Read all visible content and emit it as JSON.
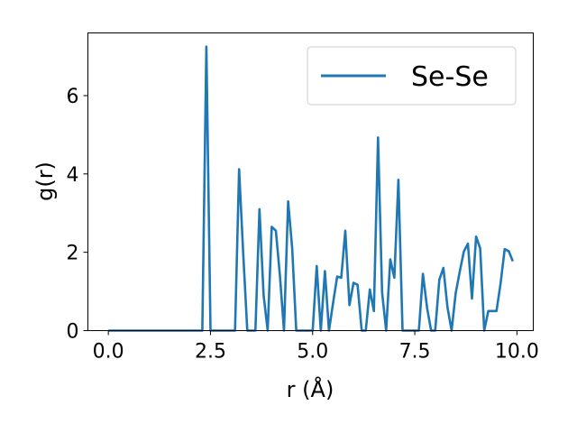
{
  "chart_data": {
    "type": "line",
    "title": "",
    "xlabel": "r (Å)",
    "ylabel": "g(r)",
    "xlim": [
      -0.5,
      10.4
    ],
    "ylim": [
      0,
      7.6
    ],
    "xticks": [
      0.0,
      2.5,
      5.0,
      7.5,
      10.0
    ],
    "xtick_labels": [
      "0.0",
      "2.5",
      "5.0",
      "7.5",
      "10.0"
    ],
    "yticks": [
      0,
      2,
      4,
      6
    ],
    "ytick_labels": [
      "0",
      "2",
      "4",
      "6"
    ],
    "grid": false,
    "legend_position": "top-right",
    "series": [
      {
        "name": "Se-Se",
        "color": "#1f77b4",
        "x": [
          0.0,
          0.1,
          0.2,
          0.3,
          0.4,
          0.5,
          0.6,
          0.7,
          0.8,
          0.9,
          1.0,
          1.1,
          1.2,
          1.3,
          1.4,
          1.5,
          1.6,
          1.7,
          1.8,
          1.9,
          2.0,
          2.1,
          2.2,
          2.3,
          2.4,
          2.5,
          2.6,
          2.7,
          2.8,
          2.9,
          3.0,
          3.1,
          3.2,
          3.3,
          3.4,
          3.5,
          3.6,
          3.7,
          3.8,
          3.9,
          4.0,
          4.1,
          4.2,
          4.3,
          4.4,
          4.5,
          4.6,
          4.7,
          4.8,
          4.9,
          5.0,
          5.1,
          5.2,
          5.3,
          5.4,
          5.5,
          5.6,
          5.7,
          5.8,
          5.9,
          6.0,
          6.1,
          6.2,
          6.3,
          6.4,
          6.5,
          6.6,
          6.7,
          6.8,
          6.9,
          7.0,
          7.1,
          7.2,
          7.3,
          7.4,
          7.5,
          7.6,
          7.7,
          7.8,
          7.9,
          8.0,
          8.1,
          8.2,
          8.3,
          8.4,
          8.5,
          8.6,
          8.7,
          8.8,
          8.9,
          9.0,
          9.1,
          9.2,
          9.3,
          9.4,
          9.5,
          9.6,
          9.7,
          9.8,
          9.9
        ],
        "values": [
          0,
          0,
          0,
          0,
          0,
          0,
          0,
          0,
          0,
          0,
          0,
          0,
          0,
          0,
          0,
          0,
          0,
          0,
          0,
          0,
          0,
          0,
          0,
          0,
          7.25,
          0,
          0,
          0,
          0,
          0,
          0,
          0,
          4.12,
          2.0,
          0,
          0,
          0,
          3.1,
          0.9,
          0,
          2.65,
          2.55,
          1.4,
          0,
          3.3,
          2.1,
          0,
          0,
          0,
          0,
          0,
          1.65,
          0,
          1.52,
          0,
          0.7,
          1.38,
          1.35,
          2.55,
          0.65,
          1.22,
          1.17,
          0,
          0,
          1.05,
          0.5,
          4.93,
          0.98,
          0,
          1.82,
          1.35,
          3.85,
          0,
          0,
          0,
          0,
          0,
          1.45,
          0.58,
          0,
          0,
          1.3,
          1.6,
          0.6,
          0,
          0.95,
          1.5,
          2.02,
          2.22,
          0.82,
          2.4,
          2.1,
          0,
          0.5,
          0.5,
          0.5,
          1.2,
          2.08,
          2.03,
          1.77
        ]
      }
    ]
  }
}
